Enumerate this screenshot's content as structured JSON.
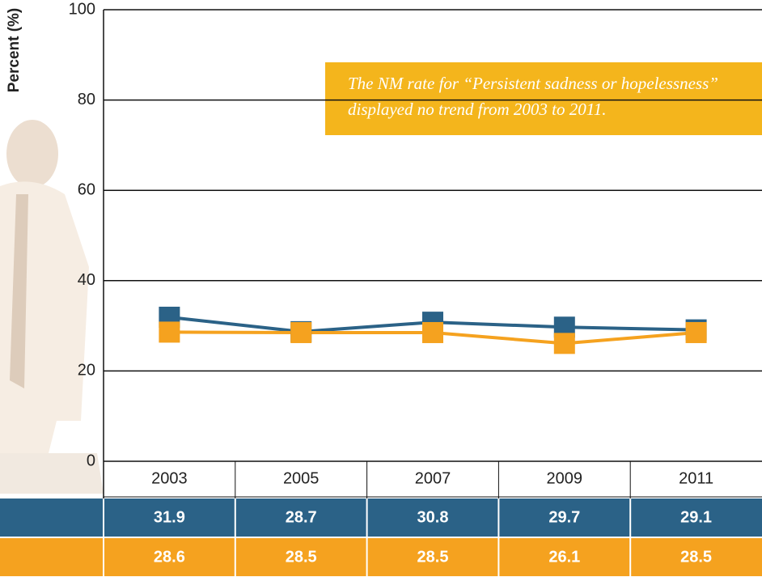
{
  "chart_data": {
    "type": "line",
    "y_label": "Percent (%)",
    "annotation": [
      "The NM rate for “Persistent sadness or hopelessness”",
      "displayed no trend from 2003 to 2011."
    ],
    "categories": [
      "2003",
      "2005",
      "2007",
      "2009",
      "2011"
    ],
    "series": [
      {
        "color": "#2b6287",
        "values": [
          31.9,
          28.7,
          30.8,
          29.7,
          29.1
        ]
      },
      {
        "color": "#f5a21f",
        "values": [
          28.6,
          28.5,
          28.5,
          26.1,
          28.5
        ]
      }
    ],
    "ylim": [
      0,
      100
    ],
    "yticks": [
      0,
      20,
      40,
      60,
      80,
      100
    ],
    "grid": true
  }
}
